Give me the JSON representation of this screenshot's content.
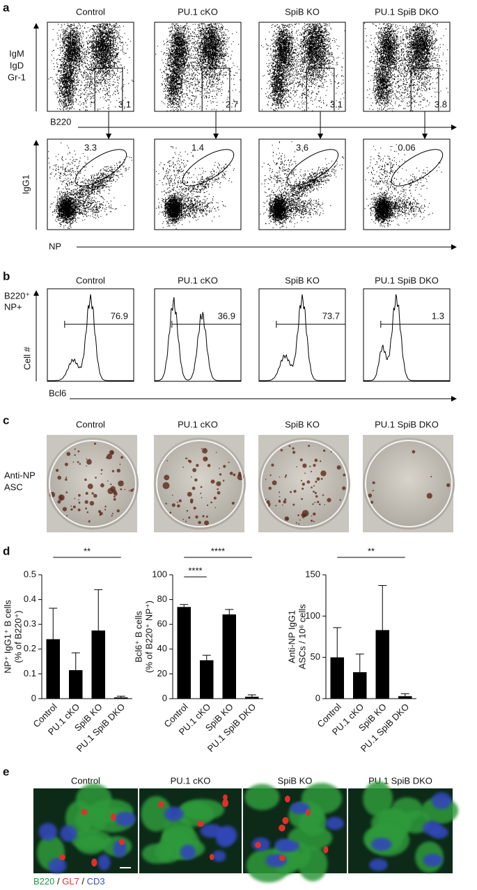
{
  "panels": {
    "a": {
      "label": "a",
      "columns": [
        "Control",
        "PU.1 cKO",
        "SpiB KO",
        "PU.1 SpiB DKO"
      ],
      "top_y_label": [
        "IgM",
        "IgD",
        "Gr-1"
      ],
      "top_x_label": "B220",
      "top_gates": [
        3.1,
        2.7,
        3.1,
        3.8
      ],
      "bottom_y_label": "IgG1",
      "bottom_x_label": "NP",
      "bottom_gates": [
        3.3,
        1.4,
        3.6,
        0.06
      ]
    },
    "b": {
      "label": "b",
      "columns": [
        "Control",
        "PU.1 cKO",
        "SpiB KO",
        "PU.1 SpiB DKO"
      ],
      "y_label_lines": [
        "B220⁺",
        "NP+"
      ],
      "y_axis": "Cell #",
      "x_label": "Bcl6",
      "gates": [
        76.9,
        36.9,
        73.7,
        1.3
      ]
    },
    "c": {
      "label": "c",
      "columns": [
        "Control",
        "PU.1 cKO",
        "SpiB KO",
        "PU.1 SpiB DKO"
      ],
      "row_label": [
        "Anti-NP",
        "ASC"
      ]
    },
    "d": {
      "label": "d"
    },
    "e": {
      "label": "e",
      "columns": [
        "Control",
        "PU.1 cKO",
        "SpiB KO",
        "PU.1 SpiB DKO"
      ],
      "legend": [
        {
          "text": "B220",
          "color": "#1f9a3c"
        },
        {
          "text": "GL7",
          "color": "#e0302a"
        },
        {
          "text": "CD3",
          "color": "#3a4fbf"
        }
      ],
      "separator": " / "
    }
  },
  "chart_data": [
    {
      "type": "bar",
      "ylabel_lines": [
        "NP⁺ IgG1⁺ B cells",
        "(% of B220⁺)"
      ],
      "categories": [
        "Control",
        "PU.1 cKO",
        "SpiB KO",
        "PU.1 SpiB DKO"
      ],
      "values": [
        0.24,
        0.115,
        0.275,
        0.005
      ],
      "errors": [
        0.125,
        0.07,
        0.165,
        0.005
      ],
      "color": "#000000",
      "ylim": [
        0,
        0.5
      ],
      "yticks": [
        0,
        0.1,
        0.2,
        0.3,
        0.4,
        0.5
      ],
      "annotations": [
        {
          "text": "**",
          "between": [
            "Control",
            "PU.1 SpiB DKO"
          ]
        }
      ]
    },
    {
      "type": "bar",
      "ylabel_lines": [
        "Bcl6⁺ B cells",
        "(% of B220⁺ NP⁺)"
      ],
      "categories": [
        "Control",
        "PU.1 cKO",
        "SpiB KO",
        "PU.1 SpiB DKO"
      ],
      "values": [
        74,
        31,
        68,
        1.5
      ],
      "errors": [
        2,
        4,
        4,
        1.5
      ],
      "color": "#000000",
      "ylim": [
        0,
        100
      ],
      "yticks": [
        0,
        20,
        40,
        60,
        80,
        100
      ],
      "annotations": [
        {
          "text": "****",
          "between": [
            "Control",
            "PU.1 cKO"
          ]
        },
        {
          "text": "****",
          "between": [
            "Control",
            "PU.1 SpiB DKO"
          ]
        }
      ]
    },
    {
      "type": "bar",
      "ylabel_lines": [
        "Anti-NP IgG1",
        "ASCs / 10⁶ cells"
      ],
      "categories": [
        "Control",
        "PU.1 cKO",
        "SpiB KO",
        "PU.1 SpiB DKO"
      ],
      "values": [
        50,
        32,
        83,
        3
      ],
      "errors": [
        36,
        22,
        54,
        3
      ],
      "color": "#000000",
      "ylim": [
        0,
        150
      ],
      "yticks": [
        0,
        50,
        100,
        150
      ],
      "annotations": [
        {
          "text": "**",
          "between": [
            "Control",
            "PU.1 SpiB DKO"
          ]
        }
      ]
    }
  ]
}
